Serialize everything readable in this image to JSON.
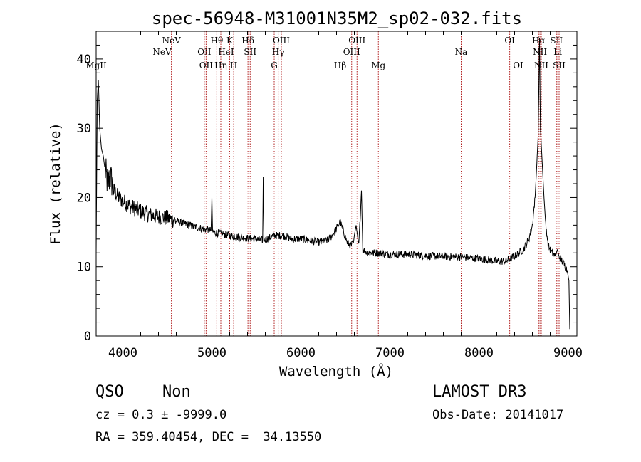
{
  "chart_data": {
    "type": "line",
    "title": "spec-56948-M31001N35M2_sp02-032.fits",
    "xlabel": "Wavelength (Å)",
    "ylabel": "Flux (relative)",
    "xlim": [
      3700,
      9100
    ],
    "ylim": [
      0,
      44
    ],
    "xticks": [
      4000,
      5000,
      6000,
      7000,
      8000,
      9000
    ],
    "yticks": [
      0,
      10,
      20,
      30,
      40
    ],
    "xtick_labels": [
      "4000",
      "5000",
      "6000",
      "7000",
      "8000",
      "9000"
    ],
    "ytick_labels": [
      "0",
      "10",
      "20",
      "30",
      "40"
    ],
    "series": [
      {
        "name": "spectrum",
        "color": "#000000",
        "points": [
          [
            3700,
            12
          ],
          [
            3712,
            34
          ],
          [
            3725,
            37
          ],
          [
            3740,
            30
          ],
          [
            3760,
            27
          ],
          [
            3780,
            26
          ],
          [
            3800,
            24
          ],
          [
            3830,
            22
          ],
          [
            3860,
            23
          ],
          [
            3900,
            21
          ],
          [
            3950,
            20
          ],
          [
            4000,
            19.5
          ],
          [
            4050,
            19
          ],
          [
            4100,
            18.6
          ],
          [
            4200,
            18
          ],
          [
            4300,
            17.5
          ],
          [
            4400,
            17.2
          ],
          [
            4500,
            17
          ],
          [
            4600,
            16.6
          ],
          [
            4700,
            16.2
          ],
          [
            4800,
            15.8
          ],
          [
            4900,
            15.5
          ],
          [
            4950,
            15.3
          ],
          [
            4990,
            15.2
          ],
          [
            5000,
            20
          ],
          [
            5008,
            15
          ],
          [
            5100,
            14.8
          ],
          [
            5200,
            14.5
          ],
          [
            5300,
            14.3
          ],
          [
            5400,
            14.1
          ],
          [
            5500,
            14
          ],
          [
            5570,
            13.8
          ],
          [
            5577,
            23
          ],
          [
            5585,
            13.8
          ],
          [
            5700,
            14.5
          ],
          [
            5800,
            14.5
          ],
          [
            5900,
            14
          ],
          [
            6000,
            14
          ],
          [
            6100,
            13.8
          ],
          [
            6200,
            13.5
          ],
          [
            6300,
            13.8
          ],
          [
            6350,
            14.5
          ],
          [
            6400,
            15.5
          ],
          [
            6440,
            16.5
          ],
          [
            6480,
            15
          ],
          [
            6520,
            13.5
          ],
          [
            6560,
            13
          ],
          [
            6590,
            13.5
          ],
          [
            6600,
            14.5
          ],
          [
            6620,
            16
          ],
          [
            6630,
            15
          ],
          [
            6650,
            13
          ],
          [
            6680,
            21
          ],
          [
            6695,
            12.5
          ],
          [
            6750,
            12
          ],
          [
            6850,
            12
          ],
          [
            7000,
            11.8
          ],
          [
            7200,
            11.8
          ],
          [
            7400,
            11.6
          ],
          [
            7600,
            11.5
          ],
          [
            7800,
            11.4
          ],
          [
            8000,
            11.2
          ],
          [
            8200,
            10.8
          ],
          [
            8300,
            10.8
          ],
          [
            8400,
            11.5
          ],
          [
            8500,
            12.5
          ],
          [
            8560,
            14
          ],
          [
            8600,
            16
          ],
          [
            8630,
            20
          ],
          [
            8650,
            25
          ],
          [
            8665,
            29
          ],
          [
            8680,
            43
          ],
          [
            8690,
            30
          ],
          [
            8710,
            25
          ],
          [
            8730,
            20
          ],
          [
            8750,
            16
          ],
          [
            8780,
            13
          ],
          [
            8820,
            12
          ],
          [
            8860,
            11.5
          ],
          [
            8880,
            12.5
          ],
          [
            8900,
            11.5
          ],
          [
            8950,
            10.5
          ],
          [
            8990,
            9.5
          ],
          [
            9010,
            8
          ],
          [
            9020,
            1
          ]
        ]
      }
    ],
    "lines": [
      {
        "name": "Mg II",
        "x": 3700,
        "label": "MgII",
        "row": 3
      },
      {
        "name": "Ne V",
        "x": 4440,
        "label": "NeV",
        "row": 2
      },
      {
        "name": "Ne V",
        "x": 4545,
        "label": "NeV",
        "row": 1
      },
      {
        "name": "O II",
        "x": 4915,
        "label": "OII",
        "row": 2
      },
      {
        "name": "O II",
        "x": 4935,
        "label": "OII",
        "row": 3
      },
      {
        "name": "H theta",
        "x": 5055,
        "label": "Hθ",
        "row": 1
      },
      {
        "name": "H eta",
        "x": 5100,
        "label": "Hη",
        "row": 3
      },
      {
        "name": "He I",
        "x": 5160,
        "label": "HeI",
        "row": 2
      },
      {
        "name": "K",
        "x": 5200,
        "label": "K",
        "row": 1
      },
      {
        "name": "H",
        "x": 5245,
        "label": "H",
        "row": 3
      },
      {
        "name": "H delta",
        "x": 5405,
        "label": "Hδ",
        "row": 1
      },
      {
        "name": "S II",
        "x": 5430,
        "label": "SII",
        "row": 2
      },
      {
        "name": "G",
        "x": 5700,
        "label": "G",
        "row": 3
      },
      {
        "name": "H gamma",
        "x": 5745,
        "label": "Hγ",
        "row": 2
      },
      {
        "name": "O III",
        "x": 5780,
        "label": "OIII",
        "row": 1
      },
      {
        "name": "H beta",
        "x": 6440,
        "label": "Hβ",
        "row": 3
      },
      {
        "name": "O III",
        "x": 6570,
        "label": "OIII",
        "row": 2
      },
      {
        "name": "O III",
        "x": 6630,
        "label": "OIII",
        "row": 1
      },
      {
        "name": "Mg",
        "x": 6870,
        "label": "Mg",
        "row": 3
      },
      {
        "name": "Na",
        "x": 7800,
        "label": "Na",
        "row": 2
      },
      {
        "name": "O I",
        "x": 8345,
        "label": "OI",
        "row": 1
      },
      {
        "name": "O I",
        "x": 8440,
        "label": "OI",
        "row": 3
      },
      {
        "name": "H alpha",
        "x": 8670,
        "label": "Hα",
        "row": 1
      },
      {
        "name": "N II",
        "x": 8685,
        "label": "NII",
        "row": 2
      },
      {
        "name": "N II",
        "x": 8700,
        "label": "NII",
        "row": 3
      },
      {
        "name": "S II",
        "x": 8870,
        "label": "SII",
        "row": 1
      },
      {
        "name": "Li",
        "x": 8885,
        "label": "Li",
        "row": 2
      },
      {
        "name": "S II",
        "x": 8900,
        "label": "SII",
        "row": 3
      }
    ]
  },
  "info": {
    "class": "QSO",
    "subclass": "Non",
    "survey": "LAMOST DR3",
    "cz": "cz = 0.3 ± -9999.0",
    "obs_date": "Obs-Date: 20141017",
    "coords": "RA = 359.40454, DEC =  34.13550"
  }
}
